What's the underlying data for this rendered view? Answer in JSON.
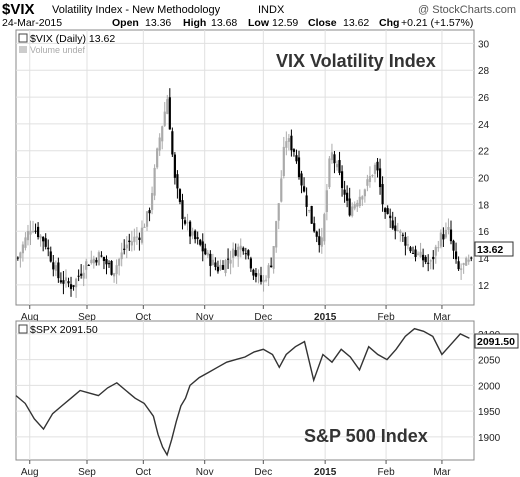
{
  "header": {
    "symbol": "$VIX",
    "name": "Volatility Index - New Methodology",
    "exchange": "INDX",
    "watermark": "@ StockCharts.com",
    "date": "24-Mar-2015",
    "open_label": "Open",
    "open": "13.36",
    "high_label": "High",
    "high": "13.68",
    "low_label": "Low",
    "low": "12.59",
    "close_label": "Close",
    "close": "13.62",
    "chg_label": "Chg",
    "chg": "+0.21 (+1.57%)"
  },
  "colors": {
    "up": "#aaaaaa",
    "down": "#000000",
    "line": "#333333",
    "grid": "#e0e0e0",
    "border": "#888888",
    "label_box": "#ffffff"
  },
  "chart_data": [
    {
      "type": "candlestick",
      "legend": "$VIX (Daily) 13.62",
      "legend2": "Volume undef",
      "annotation": "VIX Volatility Index",
      "last_value_label": "13.62",
      "ylim": [
        10.5,
        31
      ],
      "yticks": [
        "12",
        "14",
        "16",
        "18",
        "20",
        "22",
        "24",
        "26",
        "28",
        "30"
      ],
      "x_range": [
        0,
        1
      ],
      "xticks": [
        {
          "label": "Aug",
          "x": 0.03
        },
        {
          "label": "Sep",
          "x": 0.155
        },
        {
          "label": "Oct",
          "x": 0.278
        },
        {
          "label": "Nov",
          "x": 0.412
        },
        {
          "label": "Dec",
          "x": 0.54
        },
        {
          "label": "2015",
          "x": 0.675,
          "bold": true
        },
        {
          "label": "Feb",
          "x": 0.808
        },
        {
          "label": "Mar",
          "x": 0.93
        }
      ],
      "series": [
        {
          "values_t": [
            0.0,
            0.03,
            0.06,
            0.09,
            0.12,
            0.15,
            0.18,
            0.21,
            0.24,
            0.27,
            0.29,
            0.31,
            0.33,
            0.345,
            0.36,
            0.38,
            0.4,
            0.42,
            0.44,
            0.46,
            0.48,
            0.5,
            0.52,
            0.54,
            0.56,
            0.575,
            0.59,
            0.61,
            0.63,
            0.65,
            0.67,
            0.69,
            0.71,
            0.73,
            0.75,
            0.77,
            0.79,
            0.81,
            0.83,
            0.85,
            0.87,
            0.89,
            0.91,
            0.93,
            0.95,
            0.97,
            0.99
          ],
          "close": [
            14.0,
            16.5,
            15.2,
            12.5,
            11.9,
            13.6,
            14.2,
            13.0,
            15.0,
            15.8,
            17.5,
            22.5,
            26.0,
            20.0,
            17.5,
            15.8,
            15.0,
            14.0,
            13.2,
            13.8,
            14.6,
            15.0,
            13.0,
            12.1,
            13.8,
            18.0,
            23.0,
            22.0,
            19.0,
            16.5,
            15.0,
            22.0,
            20.0,
            17.5,
            18.5,
            19.5,
            21.0,
            17.0,
            16.5,
            15.5,
            14.5,
            14.0,
            13.5,
            15.5,
            16.0,
            13.0,
            13.62
          ]
        }
      ]
    },
    {
      "type": "line",
      "legend": "$SPX 2091.50",
      "annotation": "S&P 500 Index",
      "last_value_label": "2091.50",
      "ylim": [
        1855,
        2125
      ],
      "yticks": [
        "1900",
        "1950",
        "2000",
        "2050",
        "2100"
      ],
      "x_range": [
        0,
        1
      ],
      "xticks": [
        {
          "label": "Aug",
          "x": 0.03
        },
        {
          "label": "Sep",
          "x": 0.155
        },
        {
          "label": "Oct",
          "x": 0.278
        },
        {
          "label": "Nov",
          "x": 0.412
        },
        {
          "label": "Dec",
          "x": 0.54
        },
        {
          "label": "2015",
          "x": 0.675,
          "bold": true
        },
        {
          "label": "Feb",
          "x": 0.808
        },
        {
          "label": "Mar",
          "x": 0.93
        }
      ],
      "series": [
        {
          "x": [
            0.0,
            0.02,
            0.04,
            0.06,
            0.08,
            0.1,
            0.12,
            0.14,
            0.16,
            0.18,
            0.2,
            0.22,
            0.24,
            0.26,
            0.28,
            0.3,
            0.31,
            0.32,
            0.33,
            0.34,
            0.35,
            0.36,
            0.37,
            0.38,
            0.4,
            0.42,
            0.44,
            0.46,
            0.48,
            0.5,
            0.52,
            0.54,
            0.56,
            0.575,
            0.59,
            0.61,
            0.63,
            0.65,
            0.67,
            0.69,
            0.71,
            0.73,
            0.75,
            0.77,
            0.79,
            0.81,
            0.83,
            0.85,
            0.87,
            0.89,
            0.91,
            0.93,
            0.95,
            0.97,
            0.99
          ],
          "values": [
            1980,
            1965,
            1935,
            1915,
            1945,
            1960,
            1975,
            1990,
            1985,
            1980,
            1995,
            2005,
            1990,
            1975,
            1965,
            1940,
            1905,
            1880,
            1865,
            1895,
            1930,
            1960,
            1975,
            2000,
            2015,
            2025,
            2035,
            2045,
            2050,
            2055,
            2065,
            2070,
            2060,
            2035,
            2060,
            2075,
            2085,
            2010,
            2060,
            2045,
            2070,
            2055,
            2030,
            2075,
            2060,
            2050,
            2070,
            2095,
            2110,
            2105,
            2095,
            2060,
            2080,
            2100,
            2091.5
          ]
        }
      ]
    }
  ]
}
